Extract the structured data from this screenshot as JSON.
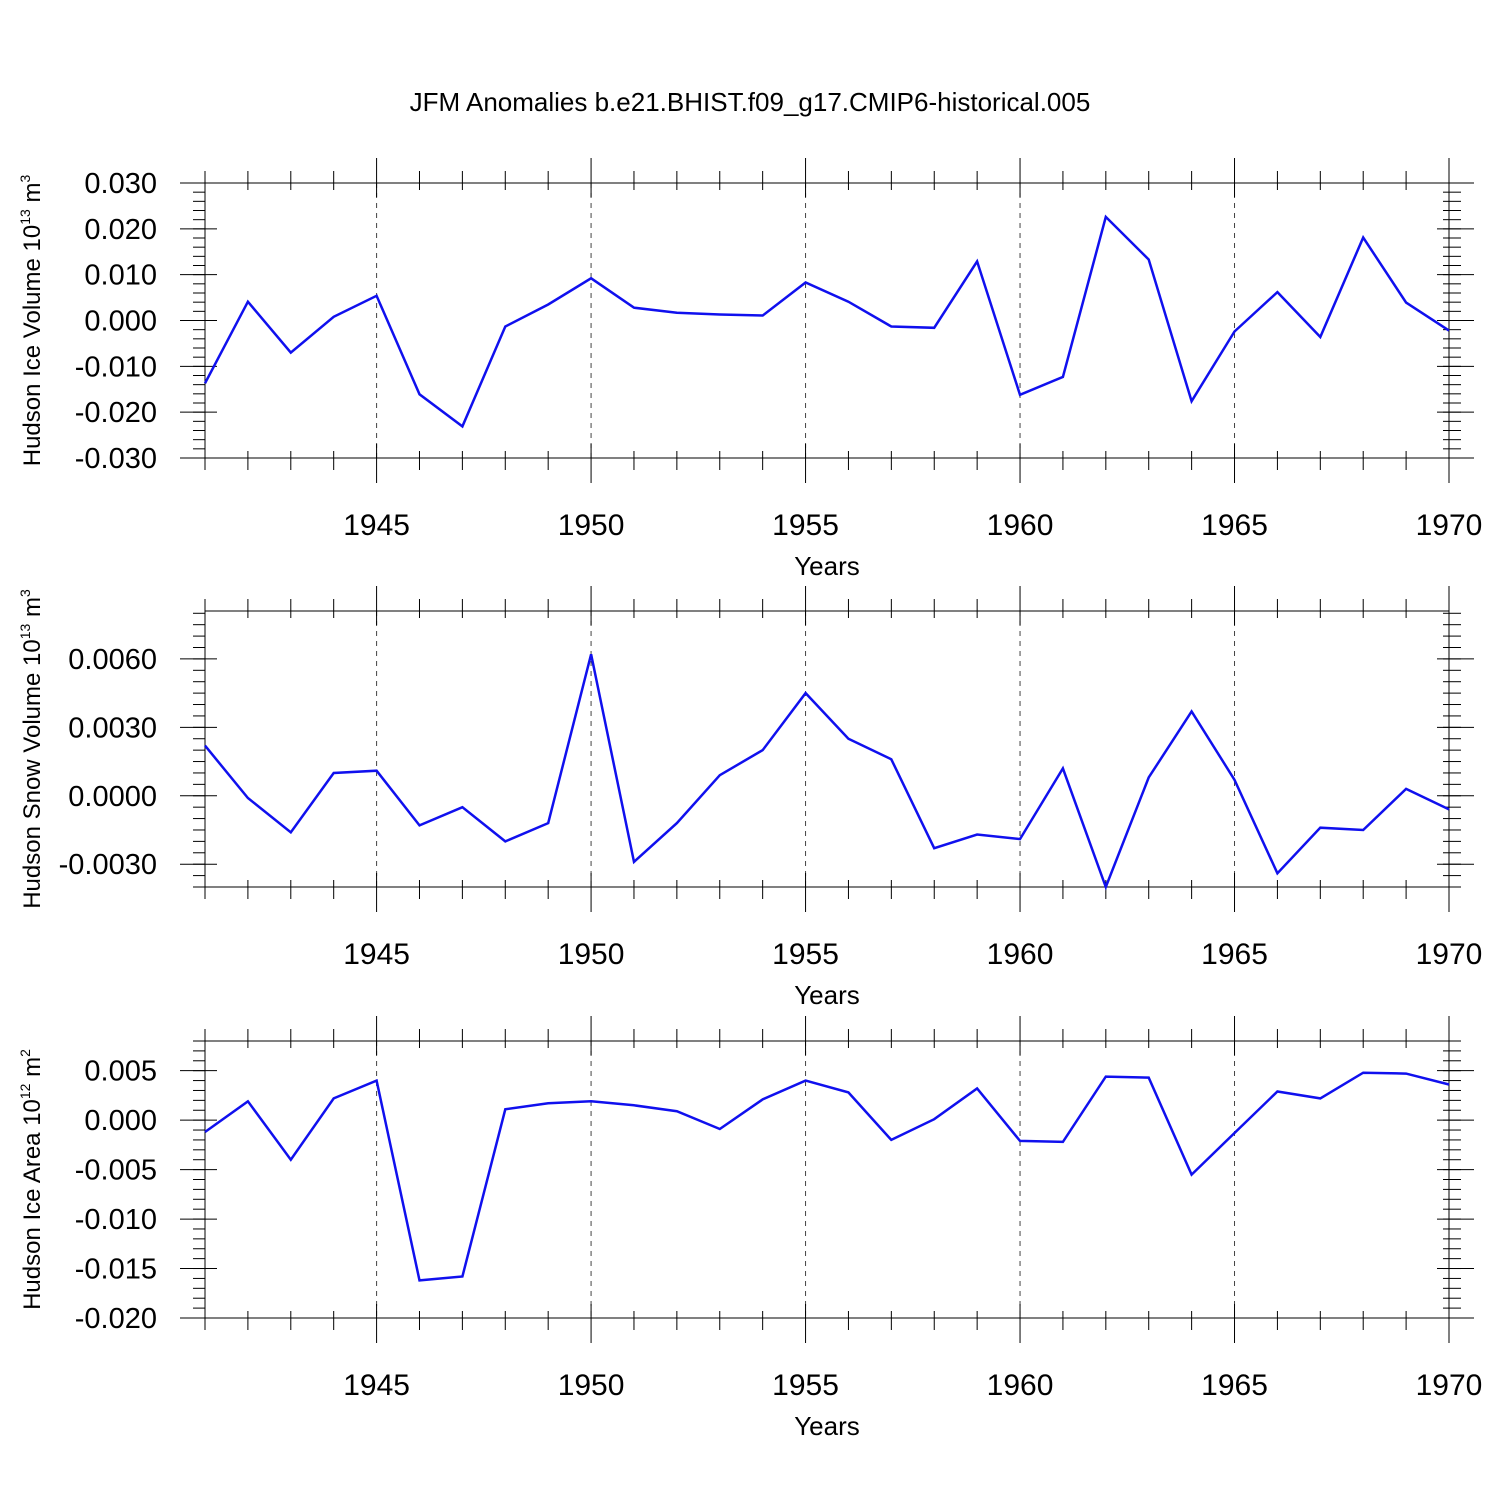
{
  "title": "JFM Anomalies b.e21.BHIST.f09_g17.CMIP6-historical.005",
  "colors": {
    "line": "#1010ee",
    "axis": "#000000",
    "grid": "#444444"
  },
  "chart_data": [
    {
      "type": "line",
      "ylabel": "Hudson Ice Volume 10",
      "ylabel_exp": "13",
      "ylabel_unit": " m",
      "ylabel_unit_exp": "3",
      "xlabel": "Years",
      "xlim": [
        1941,
        1970
      ],
      "ylim": [
        -0.03,
        0.03
      ],
      "yticks": [
        -0.03,
        -0.02,
        -0.01,
        0.0,
        0.01,
        0.02,
        0.03
      ],
      "ytick_labels": [
        "-0.030",
        "-0.020",
        "-0.010",
        "0.000",
        "0.010",
        "0.020",
        "0.030"
      ],
      "yminor": 0.002,
      "xticks": [
        1945,
        1950,
        1955,
        1960,
        1965,
        1970
      ],
      "xtick_labels": [
        "1945",
        "1950",
        "1955",
        "1960",
        "1965",
        "1970"
      ],
      "grid_x": true,
      "x": [
        1941,
        1942,
        1943,
        1944,
        1945,
        1946,
        1947,
        1948,
        1949,
        1950,
        1951,
        1952,
        1953,
        1954,
        1955,
        1956,
        1957,
        1958,
        1959,
        1960,
        1961,
        1962,
        1963,
        1964,
        1965,
        1966,
        1967,
        1968,
        1969,
        1970
      ],
      "values": [
        -0.0137,
        0.0041,
        -0.007,
        0.0008,
        0.0054,
        -0.0161,
        -0.0231,
        -0.0013,
        0.0035,
        0.0092,
        0.0028,
        0.0017,
        0.0013,
        0.0011,
        0.0083,
        0.0041,
        -0.0013,
        -0.0016,
        0.0129,
        -0.0162,
        -0.0123,
        0.0226,
        0.0133,
        -0.0176,
        -0.0024,
        0.0062,
        -0.0036,
        0.0181,
        0.0039,
        -0.0022
      ]
    },
    {
      "type": "line",
      "ylabel": "Hudson Snow Volume 10",
      "ylabel_exp": "13",
      "ylabel_unit": " m",
      "ylabel_unit_exp": "3",
      "xlabel": "Years",
      "xlim": [
        1941,
        1970
      ],
      "ylim": [
        -0.004,
        0.0081
      ],
      "yticks": [
        -0.003,
        0.0,
        0.003,
        0.006
      ],
      "ytick_labels": [
        "-0.0030",
        "0.0000",
        "0.0030",
        "0.0060"
      ],
      "yminor": 0.0005,
      "xticks": [
        1945,
        1950,
        1955,
        1960,
        1965,
        1970
      ],
      "xtick_labels": [
        "1945",
        "1950",
        "1955",
        "1960",
        "1965",
        "1970"
      ],
      "grid_x": true,
      "x": [
        1941,
        1942,
        1943,
        1944,
        1945,
        1946,
        1947,
        1948,
        1949,
        1950,
        1951,
        1952,
        1953,
        1954,
        1955,
        1956,
        1957,
        1958,
        1959,
        1960,
        1961,
        1962,
        1963,
        1964,
        1965,
        1966,
        1967,
        1968,
        1969,
        1970
      ],
      "values": [
        0.0022,
        -0.0001,
        -0.0016,
        0.001,
        0.0011,
        -0.0013,
        -0.0005,
        -0.002,
        -0.0012,
        0.0062,
        -0.0029,
        -0.0012,
        0.0009,
        0.002,
        0.0045,
        0.0025,
        0.0016,
        -0.0023,
        -0.0017,
        -0.0019,
        0.0012,
        -0.004,
        0.0008,
        0.0037,
        0.0007,
        -0.0034,
        -0.0014,
        -0.0015,
        0.0003,
        -0.0006
      ]
    },
    {
      "type": "line",
      "ylabel": "Hudson Ice Area 10",
      "ylabel_exp": "12",
      "ylabel_unit": " m",
      "ylabel_unit_exp": "2",
      "xlabel": "Years",
      "xlim": [
        1941,
        1970
      ],
      "ylim": [
        -0.02,
        0.008
      ],
      "yticks": [
        -0.02,
        -0.015,
        -0.01,
        -0.005,
        0.0,
        0.005
      ],
      "ytick_labels": [
        "-0.020",
        "-0.015",
        "-0.010",
        "-0.005",
        "0.000",
        "0.005"
      ],
      "yminor": 0.001,
      "xticks": [
        1945,
        1950,
        1955,
        1960,
        1965,
        1970
      ],
      "xtick_labels": [
        "1945",
        "1950",
        "1955",
        "1960",
        "1965",
        "1970"
      ],
      "grid_x": true,
      "x": [
        1941,
        1942,
        1943,
        1944,
        1945,
        1946,
        1947,
        1948,
        1949,
        1950,
        1951,
        1952,
        1953,
        1954,
        1955,
        1956,
        1957,
        1958,
        1959,
        1960,
        1961,
        1962,
        1963,
        1964,
        1965,
        1966,
        1967,
        1968,
        1969,
        1970
      ],
      "values": [
        -0.0012,
        0.0019,
        -0.004,
        0.0022,
        0.004,
        -0.0162,
        -0.0158,
        0.0011,
        0.0017,
        0.0019,
        0.0015,
        0.0009,
        -0.0009,
        0.0021,
        0.004,
        0.0028,
        -0.002,
        0.0001,
        0.0032,
        -0.0021,
        -0.0022,
        0.0044,
        0.0043,
        -0.0055,
        -0.0013,
        0.0029,
        0.0022,
        0.0048,
        0.0047,
        0.0036
      ]
    }
  ]
}
